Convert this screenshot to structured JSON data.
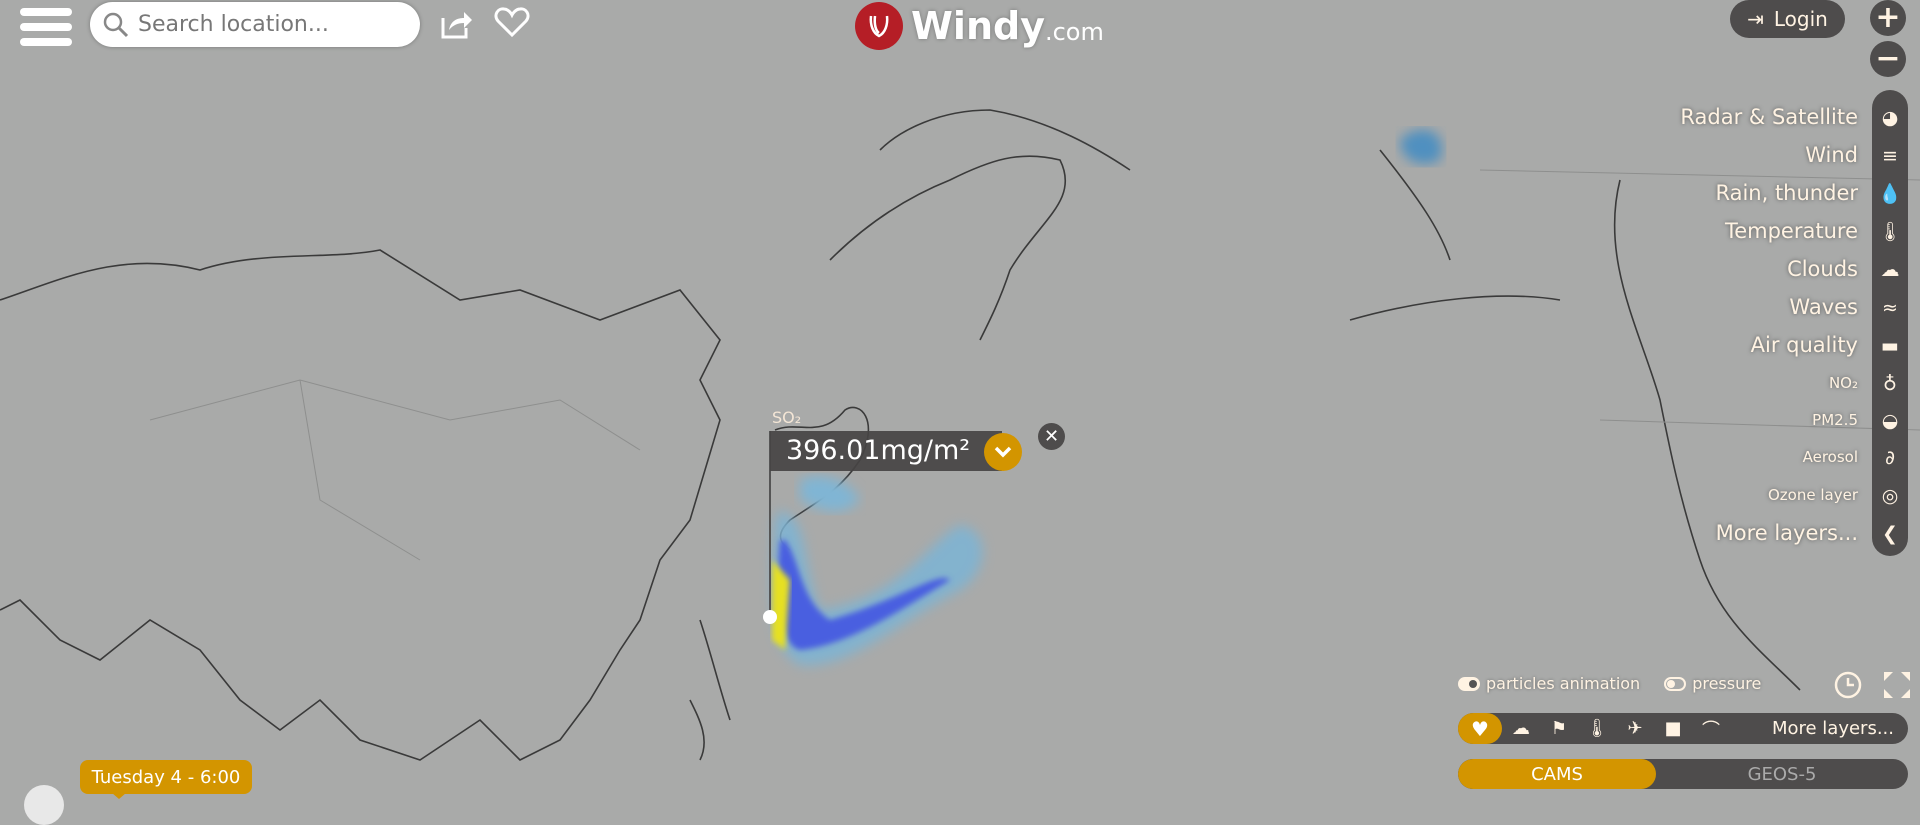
{
  "header": {
    "search_placeholder": "Search location...",
    "logo_text": "Windy",
    "logo_suffix": ".com",
    "login_label": "Login"
  },
  "zoom": {
    "in": "+",
    "out": "−"
  },
  "layers_menu": {
    "items": [
      {
        "label": "Radar & Satellite",
        "icon": "globe-icon",
        "size": "big"
      },
      {
        "label": "Wind",
        "icon": "wind-icon",
        "size": "big"
      },
      {
        "label": "Rain, thunder",
        "icon": "drop-icon",
        "size": "big"
      },
      {
        "label": "Temperature",
        "icon": "thermometer-icon",
        "size": "big"
      },
      {
        "label": "Clouds",
        "icon": "cloud-icon",
        "size": "big"
      },
      {
        "label": "Waves",
        "icon": "waves-icon",
        "size": "big"
      },
      {
        "label": "Air quality",
        "icon": "car-icon",
        "size": "big"
      },
      {
        "label": "NO₂",
        "icon": "gas-mask-icon",
        "size": "small"
      },
      {
        "label": "PM2.5",
        "icon": "pm-icon",
        "size": "small"
      },
      {
        "label": "Aerosol",
        "icon": "aerosol-icon",
        "size": "small"
      },
      {
        "label": "Ozone layer",
        "icon": "ozone-icon",
        "size": "small"
      },
      {
        "label": "More layers...",
        "icon": "chevron-left-icon",
        "size": "big"
      }
    ]
  },
  "popup": {
    "overlay": "SO₂",
    "value": "396.01mg/m²"
  },
  "toggles": {
    "particles": {
      "label": "particles animation",
      "on": true
    },
    "pressure": {
      "label": "pressure",
      "on": false
    }
  },
  "quick_layers": {
    "more_label": "More layers...",
    "icons": [
      "heart-icon",
      "sun-cloud-icon",
      "windsock-icon",
      "thermometer-icon",
      "airplane-icon",
      "camera-icon",
      "paraglider-icon"
    ]
  },
  "models": {
    "items": [
      "CAMS",
      "GEOS-5"
    ],
    "active": "CAMS"
  },
  "timeline": {
    "current": "Tuesday 4 - 6:00"
  },
  "colors": {
    "accent": "#d39500",
    "panel": "#4e4c4c",
    "logo": "#b51e26"
  }
}
